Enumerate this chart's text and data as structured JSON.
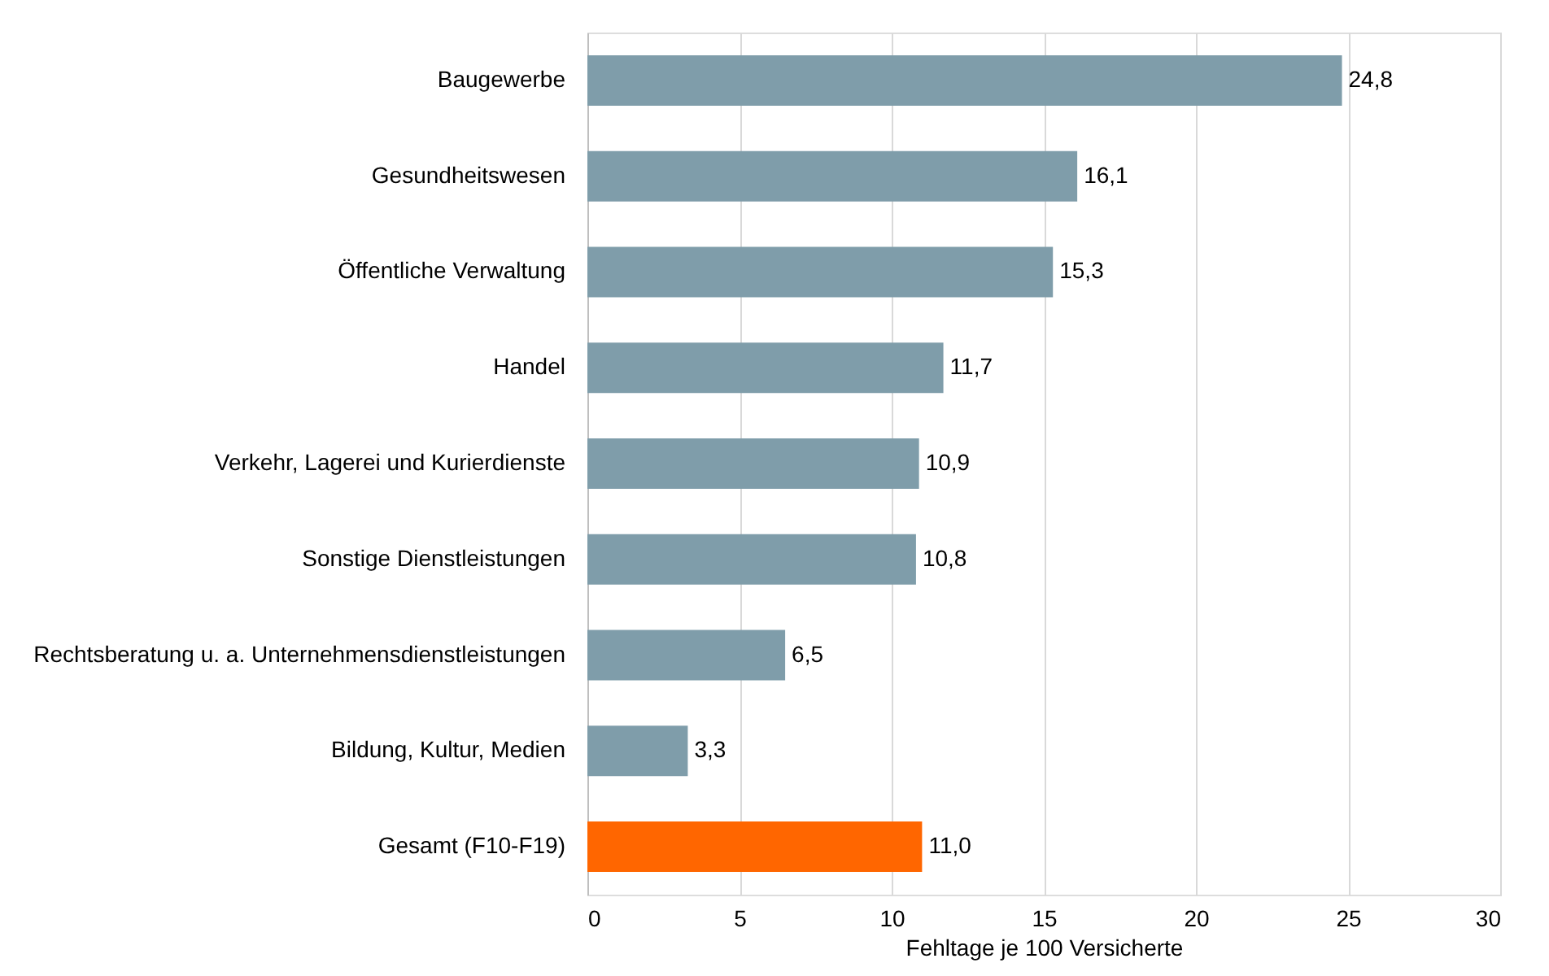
{
  "chart_data": {
    "type": "bar",
    "orientation": "horizontal",
    "categories": [
      "Baugewerbe",
      "Gesundheitswesen",
      "Öffentliche Verwaltung",
      "Handel",
      "Verkehr, Lagerei und Kurierdienste",
      "Sonstige Dienstleistungen",
      "Rechtsberatung u. a. Unternehmensdienstleistungen",
      "Bildung, Kultur, Medien",
      "Gesamt (F10-F19)"
    ],
    "values": [
      24.8,
      16.1,
      15.3,
      11.7,
      10.9,
      10.8,
      6.5,
      3.3,
      11.0
    ],
    "value_labels": [
      "24,8",
      "16,1",
      "15,3",
      "11,7",
      "10,9",
      "10,8",
      "6,5",
      "3,3",
      "11,0"
    ],
    "colors": [
      "#7f9daa",
      "#7f9daa",
      "#7f9daa",
      "#7f9daa",
      "#7f9daa",
      "#7f9daa",
      "#7f9daa",
      "#7f9daa",
      "#ff6600"
    ],
    "xlabel": "Fehltage je 100 Versicherte",
    "xlim": [
      0,
      30
    ],
    "xticks": [
      0,
      5,
      10,
      15,
      20,
      25,
      30
    ],
    "grid": "x"
  }
}
